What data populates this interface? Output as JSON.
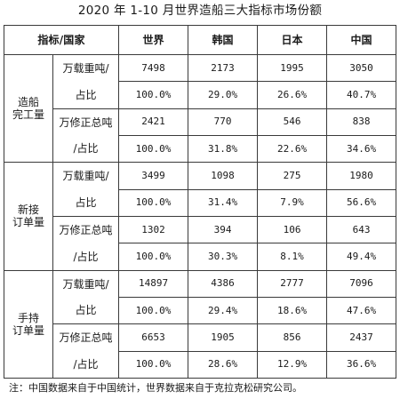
{
  "title": "2020 年 1-10 月世界造船三大指标市场份额",
  "header": {
    "label": "指标/国家",
    "columns": [
      "世界",
      "韩国",
      "日本",
      "中国"
    ]
  },
  "sections": [
    {
      "name": [
        "造船",
        "完工量"
      ],
      "metrics": [
        {
          "label": [
            "万载重吨/",
            "占比"
          ],
          "values": [
            "7498",
            "2173",
            "1995",
            "3050"
          ],
          "shares": [
            "100.0%",
            "29.0%",
            "26.6%",
            "40.7%"
          ]
        },
        {
          "label": [
            "万修正总吨",
            "/占比"
          ],
          "values": [
            "2421",
            "770",
            "546",
            "838"
          ],
          "shares": [
            "100.0%",
            "31.8%",
            "22.6%",
            "34.6%"
          ]
        }
      ]
    },
    {
      "name": [
        "新接",
        "订单量"
      ],
      "metrics": [
        {
          "label": [
            "万载重吨/",
            "占比"
          ],
          "values": [
            "3499",
            "1098",
            "275",
            "1980"
          ],
          "shares": [
            "100.0%",
            "31.4%",
            "7.9%",
            "56.6%"
          ]
        },
        {
          "label": [
            "万修正总吨",
            "/占比"
          ],
          "values": [
            "1302",
            "394",
            "106",
            "643"
          ],
          "shares": [
            "100.0%",
            "30.3%",
            "8.1%",
            "49.4%"
          ]
        }
      ]
    },
    {
      "name": [
        "手持",
        "订单量"
      ],
      "metrics": [
        {
          "label": [
            "万载重吨/",
            "占比"
          ],
          "values": [
            "14897",
            "4386",
            "2777",
            "7096"
          ],
          "shares": [
            "100.0%",
            "29.4%",
            "18.6%",
            "47.6%"
          ]
        },
        {
          "label": [
            "万修正总吨",
            "/占比"
          ],
          "values": [
            "6653",
            "1905",
            "856",
            "2437"
          ],
          "shares": [
            "100.0%",
            "28.6%",
            "12.9%",
            "36.6%"
          ]
        }
      ]
    }
  ],
  "note": "注：中国数据来自于中国统计，世界数据来自于克拉克松研究公司。"
}
